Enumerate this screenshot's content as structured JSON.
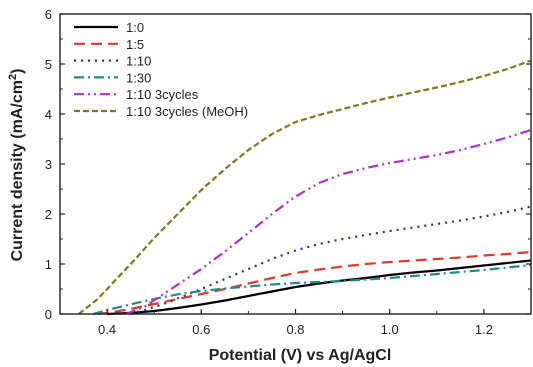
{
  "chart_data": {
    "type": "line",
    "xlabel": "Potential (V) vs Ag/AgCl",
    "ylabel_main": "Current density (mA/cm",
    "ylabel_sup": "2",
    "ylabel_tail": ")",
    "xlim": [
      0.3,
      1.3
    ],
    "ylim": [
      0,
      6
    ],
    "xticks": [
      "0.4",
      "0.6",
      "0.8",
      "1.0",
      "1.2"
    ],
    "xtick_values": [
      0.4,
      0.6,
      0.8,
      1.0,
      1.2
    ],
    "yticks": [
      "0",
      "1",
      "2",
      "3",
      "4",
      "5",
      "6"
    ],
    "ytick_values": [
      0,
      1,
      2,
      3,
      4,
      5,
      6
    ],
    "grid": false,
    "legend_position": "top-left",
    "series": [
      {
        "name": "1:0",
        "color": "#000000",
        "dash": "solid",
        "points": [
          [
            0.4,
            0.0
          ],
          [
            0.45,
            0.02
          ],
          [
            0.5,
            0.06
          ],
          [
            0.55,
            0.12
          ],
          [
            0.6,
            0.19
          ],
          [
            0.65,
            0.27
          ],
          [
            0.7,
            0.36
          ],
          [
            0.75,
            0.45
          ],
          [
            0.8,
            0.54
          ],
          [
            0.85,
            0.61
          ],
          [
            0.9,
            0.67
          ],
          [
            0.95,
            0.72
          ],
          [
            1.0,
            0.78
          ],
          [
            1.05,
            0.83
          ],
          [
            1.1,
            0.87
          ],
          [
            1.15,
            0.92
          ],
          [
            1.2,
            0.97
          ],
          [
            1.25,
            1.02
          ],
          [
            1.3,
            1.07
          ]
        ]
      },
      {
        "name": "1:5",
        "color": "#e03a2a",
        "dash": "dash",
        "points": [
          [
            0.38,
            0.0
          ],
          [
            0.42,
            0.05
          ],
          [
            0.46,
            0.12
          ],
          [
            0.5,
            0.2
          ],
          [
            0.55,
            0.3
          ],
          [
            0.6,
            0.4
          ],
          [
            0.65,
            0.5
          ],
          [
            0.7,
            0.61
          ],
          [
            0.75,
            0.72
          ],
          [
            0.8,
            0.82
          ],
          [
            0.85,
            0.89
          ],
          [
            0.9,
            0.95
          ],
          [
            0.95,
            1.0
          ],
          [
            1.0,
            1.04
          ],
          [
            1.05,
            1.07
          ],
          [
            1.1,
            1.1
          ],
          [
            1.15,
            1.13
          ],
          [
            1.2,
            1.17
          ],
          [
            1.25,
            1.2
          ],
          [
            1.3,
            1.24
          ]
        ]
      },
      {
        "name": "1:10",
        "color": "#2c2c8c",
        "dash": "dot",
        "points": [
          [
            0.45,
            0.0
          ],
          [
            0.48,
            0.08
          ],
          [
            0.52,
            0.2
          ],
          [
            0.56,
            0.35
          ],
          [
            0.6,
            0.5
          ],
          [
            0.65,
            0.7
          ],
          [
            0.7,
            0.9
          ],
          [
            0.75,
            1.1
          ],
          [
            0.8,
            1.27
          ],
          [
            0.85,
            1.4
          ],
          [
            0.9,
            1.5
          ],
          [
            0.95,
            1.58
          ],
          [
            1.0,
            1.66
          ],
          [
            1.05,
            1.73
          ],
          [
            1.1,
            1.8
          ],
          [
            1.15,
            1.87
          ],
          [
            1.2,
            1.95
          ],
          [
            1.25,
            2.04
          ],
          [
            1.3,
            2.15
          ]
        ]
      },
      {
        "name": "1:30",
        "color": "#1e8c8c",
        "dash": "dashdot",
        "points": [
          [
            0.37,
            0.0
          ],
          [
            0.4,
            0.08
          ],
          [
            0.44,
            0.17
          ],
          [
            0.48,
            0.26
          ],
          [
            0.52,
            0.34
          ],
          [
            0.56,
            0.41
          ],
          [
            0.6,
            0.46
          ],
          [
            0.65,
            0.51
          ],
          [
            0.7,
            0.55
          ],
          [
            0.75,
            0.59
          ],
          [
            0.8,
            0.62
          ],
          [
            0.85,
            0.64
          ],
          [
            0.9,
            0.66
          ],
          [
            0.95,
            0.69
          ],
          [
            1.0,
            0.72
          ],
          [
            1.05,
            0.76
          ],
          [
            1.1,
            0.8
          ],
          [
            1.15,
            0.84
          ],
          [
            1.2,
            0.88
          ],
          [
            1.25,
            0.93
          ],
          [
            1.3,
            0.98
          ]
        ]
      },
      {
        "name": "1:10 3cycles",
        "color": "#b030c8",
        "dash": "dashdotdot",
        "points": [
          [
            0.44,
            0.0
          ],
          [
            0.48,
            0.15
          ],
          [
            0.52,
            0.4
          ],
          [
            0.56,
            0.65
          ],
          [
            0.6,
            0.9
          ],
          [
            0.65,
            1.25
          ],
          [
            0.7,
            1.62
          ],
          [
            0.75,
            2.0
          ],
          [
            0.8,
            2.35
          ],
          [
            0.85,
            2.62
          ],
          [
            0.9,
            2.8
          ],
          [
            0.95,
            2.92
          ],
          [
            1.0,
            3.02
          ],
          [
            1.05,
            3.1
          ],
          [
            1.1,
            3.18
          ],
          [
            1.15,
            3.28
          ],
          [
            1.2,
            3.4
          ],
          [
            1.25,
            3.53
          ],
          [
            1.3,
            3.68
          ]
        ]
      },
      {
        "name": "1:10 3cycles (MeOH)",
        "color": "#7a7a1e",
        "dash": "shortdash",
        "points": [
          [
            0.34,
            0.0
          ],
          [
            0.38,
            0.3
          ],
          [
            0.42,
            0.7
          ],
          [
            0.46,
            1.1
          ],
          [
            0.5,
            1.52
          ],
          [
            0.55,
            2.0
          ],
          [
            0.6,
            2.48
          ],
          [
            0.65,
            2.9
          ],
          [
            0.7,
            3.28
          ],
          [
            0.75,
            3.6
          ],
          [
            0.8,
            3.84
          ],
          [
            0.85,
            3.98
          ],
          [
            0.9,
            4.1
          ],
          [
            0.95,
            4.22
          ],
          [
            1.0,
            4.33
          ],
          [
            1.05,
            4.43
          ],
          [
            1.1,
            4.53
          ],
          [
            1.15,
            4.64
          ],
          [
            1.2,
            4.76
          ],
          [
            1.25,
            4.9
          ],
          [
            1.3,
            5.07
          ]
        ]
      }
    ]
  }
}
